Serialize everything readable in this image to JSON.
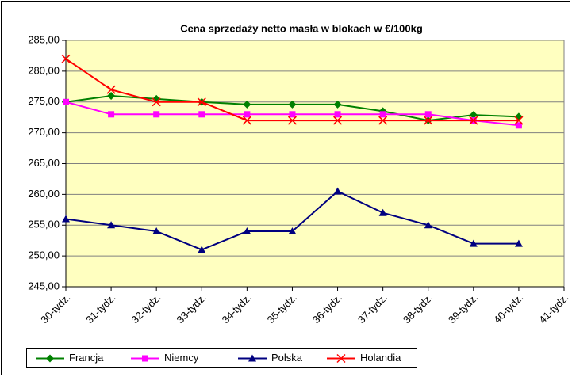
{
  "chart_data": {
    "type": "line",
    "title": "Cena sprzedaży netto masła w blokach w €/100kg",
    "categories": [
      "30-tydz.",
      "31-tydz.",
      "32-tydz.",
      "33-tydz.",
      "34-tydz.",
      "35-tydz.",
      "36-tydz.",
      "37-tydz.",
      "38-tydz.",
      "39-tydz.",
      "40-tydz.",
      "41-tydz."
    ],
    "series": [
      {
        "name": "Francja",
        "color": "#008000",
        "marker": "diamond",
        "values": [
          275,
          276,
          275.5,
          275,
          274.6,
          274.6,
          274.6,
          273.5,
          272,
          272.9,
          272.6,
          null
        ]
      },
      {
        "name": "Niemcy",
        "color": "#ff00ff",
        "marker": "square",
        "values": [
          275,
          273,
          273,
          273,
          273,
          273,
          273,
          273,
          273,
          272,
          271.2,
          null
        ]
      },
      {
        "name": "Polska",
        "color": "#000080",
        "marker": "triangle",
        "values": [
          256,
          255,
          254,
          251,
          254,
          254,
          260.5,
          257,
          255,
          252,
          252,
          null
        ]
      },
      {
        "name": "Holandia",
        "color": "#ff0000",
        "marker": "x",
        "values": [
          282,
          277,
          275,
          275,
          272,
          272,
          272,
          272,
          272,
          272,
          272,
          null
        ]
      }
    ],
    "ylim": [
      245,
      285
    ],
    "yticks": [
      {
        "value": 245,
        "label": "245,00"
      },
      {
        "value": 250,
        "label": "250,00"
      },
      {
        "value": 255,
        "label": "255,00"
      },
      {
        "value": 260,
        "label": "260,00"
      },
      {
        "value": 265,
        "label": "265,00"
      },
      {
        "value": 270,
        "label": "270,00"
      },
      {
        "value": 275,
        "label": "275,00"
      },
      {
        "value": 280,
        "label": "280,00"
      },
      {
        "value": 285,
        "label": "285,00"
      }
    ],
    "grid": true,
    "legend": "bottom",
    "plot_background": "#ffffc0"
  }
}
